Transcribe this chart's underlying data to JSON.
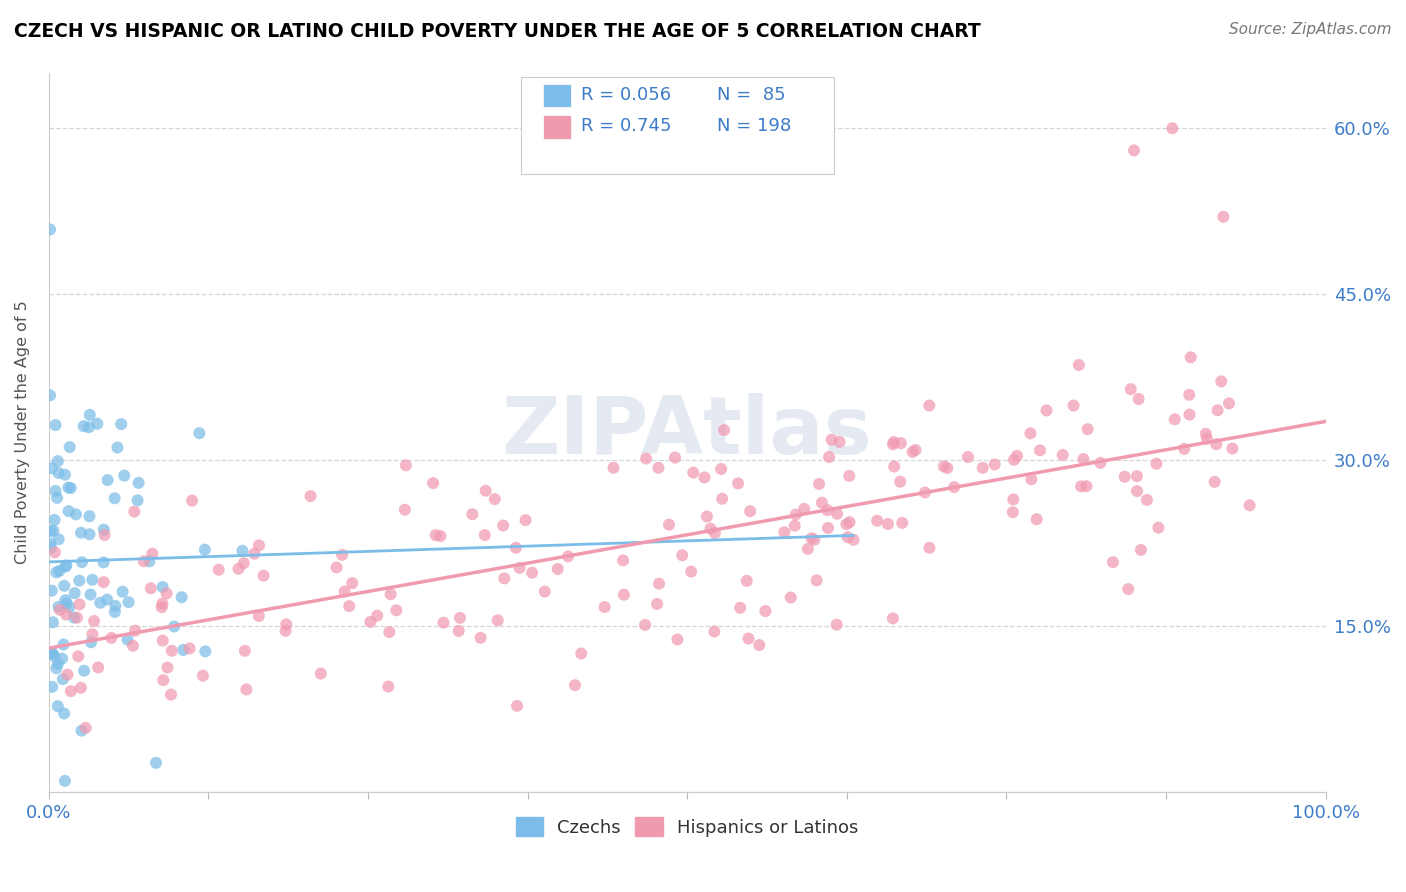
{
  "title": "CZECH VS HISPANIC OR LATINO CHILD POVERTY UNDER THE AGE OF 5 CORRELATION CHART",
  "source": "Source: ZipAtlas.com",
  "ylabel": "Child Poverty Under the Age of 5",
  "xlim": [
    0.0,
    1.0
  ],
  "ylim": [
    0.0,
    0.65
  ],
  "yticks": [
    0.0,
    0.15,
    0.3,
    0.45,
    0.6
  ],
  "ytick_labels": [
    "",
    "15.0%",
    "30.0%",
    "45.0%",
    "60.0%"
  ],
  "legend_R1": "R = 0.056",
  "legend_N1": "N =  85",
  "legend_R2": "R = 0.745",
  "legend_N2": "N = 198",
  "color_czech": "#7bbde8",
  "color_hispanic": "#f09ab0",
  "color_text_blue": "#3d7cc9",
  "watermark": "ZIPAtlas",
  "seed": 42,
  "czech_n": 85,
  "hispanic_n": 198
}
